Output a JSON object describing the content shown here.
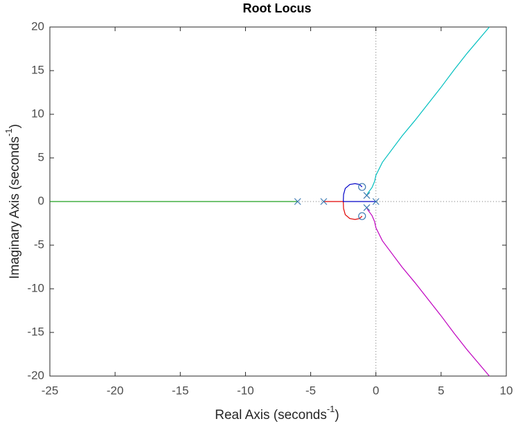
{
  "chart_data": {
    "type": "line",
    "title": "Root Locus",
    "xlabel": {
      "text": "Real Axis (seconds",
      "superscript": "-1",
      "suffix": ")"
    },
    "ylabel": {
      "text": "Imaginary Axis (seconds",
      "superscript": "-1",
      "suffix": ")"
    },
    "xlim": [
      -25,
      10
    ],
    "xticks": [
      -25,
      -20,
      -15,
      -10,
      -5,
      0,
      5,
      10
    ],
    "ylim": [
      -20,
      20
    ],
    "yticks": [
      -20,
      -15,
      -10,
      -5,
      0,
      5,
      10,
      15,
      20
    ],
    "grid": false,
    "series": [
      {
        "color": "#1f9f1f",
        "x": [
          -6,
          -25
        ],
        "y": [
          0,
          0
        ]
      },
      {
        "color": "#e00000",
        "x": [
          -4,
          -2.5,
          -2.48,
          -2.35,
          -2.0,
          -1.6,
          -1.25,
          -1.06
        ],
        "y": [
          0,
          0,
          -0.8,
          -1.5,
          -1.95,
          -2.05,
          -1.95,
          -1.67
        ]
      },
      {
        "color": "#0000c8",
        "x": [
          0,
          -2.5,
          -2.48,
          -2.35,
          -2.0,
          -1.6,
          -1.25,
          -1.06
        ],
        "y": [
          0,
          0,
          0.8,
          1.5,
          1.95,
          2.05,
          1.95,
          1.67
        ]
      },
      {
        "color": "#00bfbf",
        "x": [
          -0.7,
          -0.6,
          -0.3,
          -0.1,
          0,
          0.5,
          1,
          2,
          3,
          4,
          5,
          6,
          7,
          8.7
        ],
        "y": [
          0.7,
          1.0,
          1.6,
          2.3,
          3,
          4.5,
          5.5,
          7.5,
          9.3,
          11.2,
          13.1,
          15.1,
          17.0,
          20
        ]
      },
      {
        "color": "#bf00bf",
        "x": [
          -0.7,
          -0.6,
          -0.3,
          -0.1,
          0,
          0.5,
          1,
          2,
          3,
          4,
          5,
          6,
          7,
          8.7
        ],
        "y": [
          -0.7,
          -1.0,
          -1.6,
          -2.3,
          -3,
          -4.5,
          -5.5,
          -7.5,
          -9.3,
          -11.2,
          -13.1,
          -15.1,
          -17.0,
          -20
        ]
      }
    ],
    "poles": {
      "color": "#3a78b0",
      "x": [
        -6,
        -4,
        -0.7,
        -0.7,
        0
      ],
      "y": [
        0,
        0,
        0.7,
        -0.7,
        0
      ]
    },
    "zeros": {
      "color": "#3a78b0",
      "x": [
        -1.06,
        -1.06
      ],
      "y": [
        1.67,
        -1.67
      ]
    }
  }
}
